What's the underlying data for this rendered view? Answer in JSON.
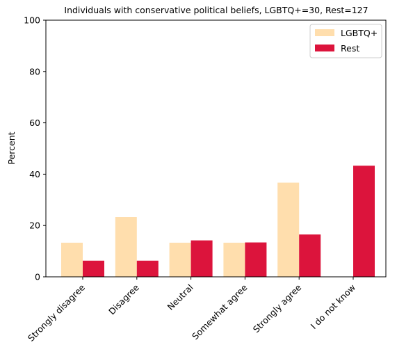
{
  "chart_data": {
    "type": "bar",
    "title": "Individuals with conservative political beliefs, LGBTQ+=30, Rest=127",
    "xlabel": "",
    "ylabel": "Percent",
    "ylim": [
      0,
      100
    ],
    "yticks": [
      0,
      20,
      40,
      60,
      80,
      100
    ],
    "categories": [
      "Strongly disagree",
      "Disagree",
      "Neutral",
      "Somewhat agree",
      "Strongly agree",
      "I do not know"
    ],
    "series": [
      {
        "name": "LGBTQ+",
        "color": "#ffdead",
        "values": [
          13.3,
          23.3,
          13.3,
          13.3,
          36.7,
          0
        ]
      },
      {
        "name": "Rest",
        "color": "#dc143c",
        "values": [
          6.3,
          6.3,
          14.2,
          13.4,
          16.5,
          43.3
        ]
      }
    ],
    "legend": "top-right",
    "grid": false
  }
}
